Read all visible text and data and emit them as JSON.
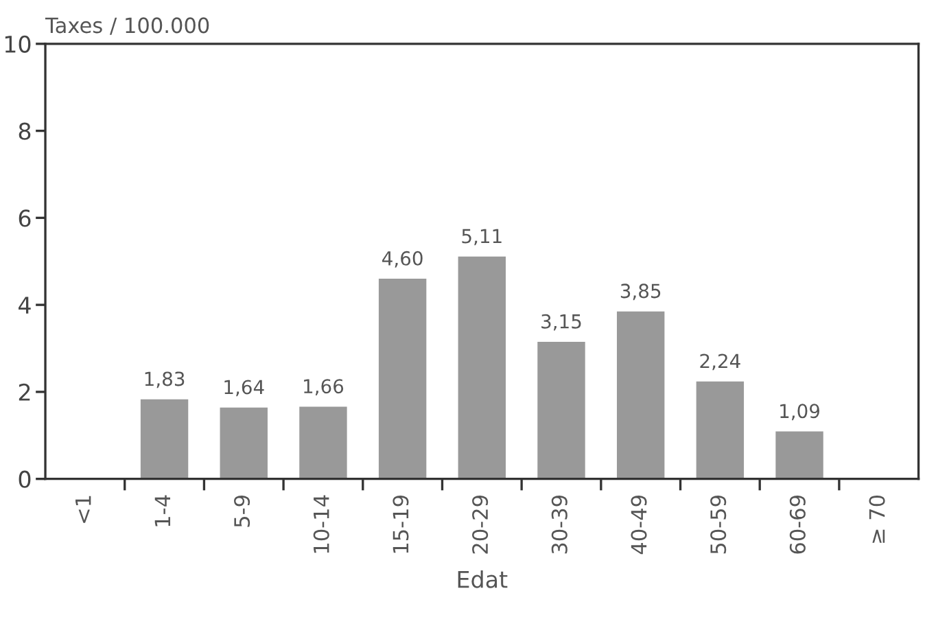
{
  "chart_data": {
    "type": "bar",
    "ylabel": "Taxes / 100.000",
    "xlabel": "Edat",
    "categories": [
      "<1",
      "1-4",
      "5-9",
      "10-14",
      "15-19",
      "20-29",
      "30-39",
      "40-49",
      "50-59",
      "60-69",
      "≥ 70"
    ],
    "values": [
      null,
      1.83,
      1.64,
      1.66,
      4.6,
      5.11,
      3.15,
      3.85,
      2.24,
      1.09,
      null
    ],
    "value_labels": [
      null,
      "1,83",
      "1,64",
      "1,66",
      "4,60",
      "5,11",
      "3,15",
      "3,85",
      "2,24",
      "1,09",
      null
    ],
    "color": "#999999",
    "ylim": [
      0,
      10
    ],
    "yticks": [
      0,
      2,
      4,
      6,
      8,
      10
    ]
  }
}
